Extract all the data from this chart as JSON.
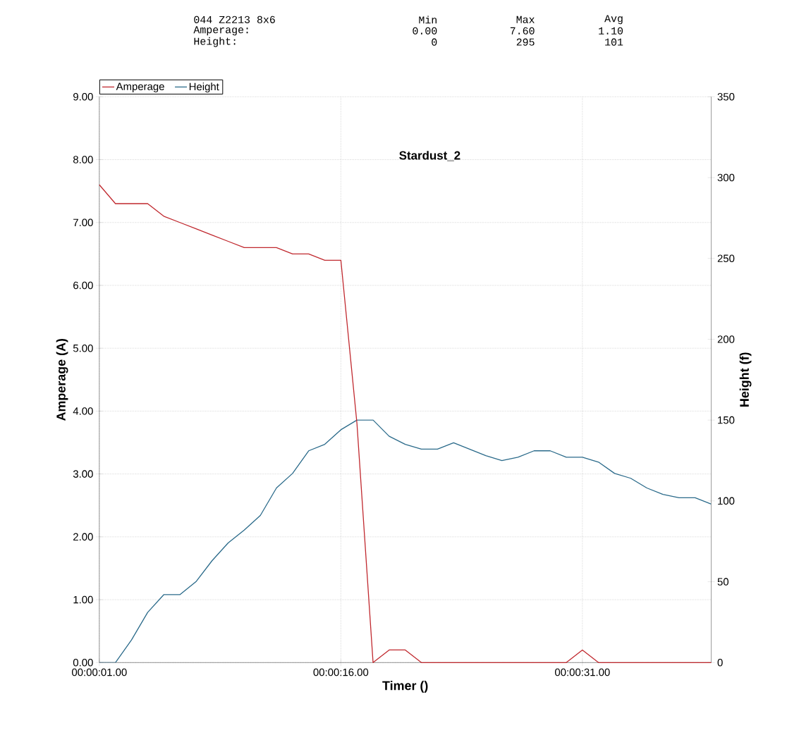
{
  "chart_data": {
    "type": "line",
    "title": "Stardust_2",
    "xlabel": "Timer ()",
    "ylabel": "Amperage (A)",
    "y2label": "Height (f)",
    "annotations": [
      "044 Z2213 8x6",
      "Min",
      "Max",
      "Avg",
      "Amperage:",
      "0.00",
      "7.60",
      "1.10",
      "Height:",
      "0",
      "295",
      "101"
    ],
    "categories": [
      "00:00:01.00",
      null,
      null,
      null,
      null,
      null,
      null,
      null,
      null,
      null,
      null,
      null,
      null,
      null,
      null,
      "00:00:16.00",
      null,
      null,
      null,
      null,
      null,
      null,
      null,
      null,
      null,
      null,
      null,
      null,
      null,
      null,
      "00:00:31.00",
      null,
      null,
      null,
      null,
      null,
      null,
      null,
      null
    ],
    "series": [
      {
        "name": "Amperage",
        "color": "#c0282e",
        "values": [
          7.6,
          7.3,
          7.3,
          7.3,
          7.1,
          7.0,
          6.9,
          6.8,
          6.7,
          6.6,
          6.6,
          6.6,
          6.5,
          6.5,
          6.4,
          6.4,
          3.8,
          0,
          0.2,
          0.2,
          0,
          0,
          0,
          0,
          0,
          0,
          0,
          0,
          0,
          0,
          0.2,
          0,
          0,
          0,
          0,
          0,
          0,
          0,
          0
        ]
      },
      {
        "name": "Height",
        "color": "#2a6a8a",
        "axis": "y2",
        "values": [
          0,
          0,
          14,
          31,
          42,
          42,
          50,
          63,
          74,
          82,
          91,
          108,
          117,
          131,
          135,
          144,
          150,
          150,
          140,
          135,
          132,
          132,
          136,
          132,
          128,
          125,
          127,
          131,
          131,
          127,
          127,
          124,
          117,
          114,
          108,
          104,
          102,
          102,
          98
        ]
      }
    ],
    "ylim": [
      0,
      9
    ],
    "yticks": [
      {
        "value": 0,
        "label": "0.00"
      },
      {
        "value": 1,
        "label": "1.00"
      },
      {
        "value": 2,
        "label": "2.00"
      },
      {
        "value": 3,
        "label": "3.00"
      },
      {
        "value": 4,
        "label": "4.00"
      },
      {
        "value": 5,
        "label": "5.00"
      },
      {
        "value": 6,
        "label": "6.00"
      },
      {
        "value": 7,
        "label": "7.00"
      },
      {
        "value": 8,
        "label": "8.00"
      },
      {
        "value": 9,
        "label": "9.00"
      }
    ],
    "y2lim": [
      0,
      350
    ],
    "y2ticks": [
      0,
      50,
      100,
      150,
      200,
      250,
      300,
      350
    ],
    "grid": true,
    "legend": "top left",
    "line_style": "solid"
  }
}
